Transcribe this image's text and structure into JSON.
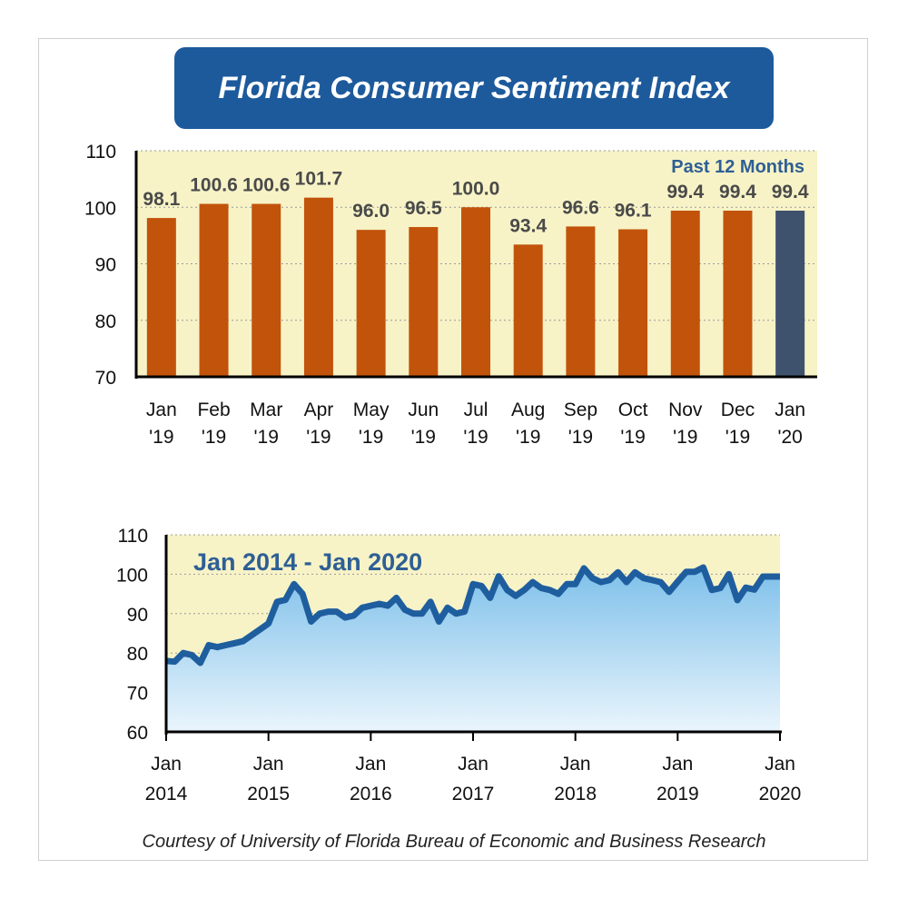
{
  "title": "Florida Consumer Sentiment Index",
  "caption": "Courtesy of University of Florida Bureau of Economic and Business Research",
  "colors": {
    "title_bg": "#1d5a9c",
    "plot_bg": "#f7f3c7",
    "bar": "#c2530b",
    "bar_highlight": "#3f526d",
    "annotation": "#2e5f95",
    "line": "#1f5e9e",
    "area_top": "#7ec0ea",
    "area_bottom": "#eaf5fc"
  },
  "chart_data": [
    {
      "type": "bar",
      "title": "",
      "annotation": "Past 12 Months",
      "categories": [
        "Jan '19",
        "Feb '19",
        "Mar '19",
        "Apr '19",
        "May '19",
        "Jun '19",
        "Jul '19",
        "Aug '19",
        "Sep '19",
        "Oct '19",
        "Nov '19",
        "Dec '19",
        "Jan '20"
      ],
      "category_lines": [
        [
          "Jan",
          "'19"
        ],
        [
          "Feb",
          "'19"
        ],
        [
          "Mar",
          "'19"
        ],
        [
          "Apr",
          "'19"
        ],
        [
          "May",
          "'19"
        ],
        [
          "Jun",
          "'19"
        ],
        [
          "Jul",
          "'19"
        ],
        [
          "Aug",
          "'19"
        ],
        [
          "Sep",
          "'19"
        ],
        [
          "Oct",
          "'19"
        ],
        [
          "Nov",
          "'19"
        ],
        [
          "Dec",
          "'19"
        ],
        [
          "Jan",
          "'20"
        ]
      ],
      "values": [
        98.1,
        100.6,
        100.6,
        101.7,
        96.0,
        96.5,
        100.0,
        93.4,
        96.6,
        96.1,
        99.4,
        99.4,
        99.4
      ],
      "value_labels": [
        "98.1",
        "100.6",
        "100.6",
        "101.7",
        "96.0",
        "96.5",
        "100.0",
        "93.4",
        "96.6",
        "96.1",
        "99.4",
        "99.4",
        "99.4"
      ],
      "highlight_index": 12,
      "ylim": [
        70,
        110
      ],
      "yticks": [
        70,
        80,
        90,
        100,
        110
      ],
      "grid": true
    },
    {
      "type": "area",
      "title": "",
      "annotation": "Jan 2014 - Jan 2020",
      "x_range": [
        "2014-01",
        "2020-01"
      ],
      "xticks": [
        [
          "Jan",
          "2014"
        ],
        [
          "Jan",
          "2015"
        ],
        [
          "Jan",
          "2016"
        ],
        [
          "Jan",
          "2017"
        ],
        [
          "Jan",
          "2018"
        ],
        [
          "Jan",
          "2019"
        ],
        [
          "Jan",
          "2020"
        ]
      ],
      "values": [
        78.0,
        77.8,
        80.0,
        79.5,
        77.5,
        82.0,
        81.5,
        82.0,
        82.5,
        83.0,
        84.5,
        86.0,
        87.5,
        93.0,
        93.5,
        97.5,
        95.0,
        88.0,
        90.0,
        90.5,
        90.5,
        89.0,
        89.5,
        91.5,
        92.0,
        92.5,
        92.0,
        94.0,
        91.0,
        90.0,
        90.0,
        93.0,
        88.0,
        91.5,
        90.0,
        90.5,
        97.5,
        97.0,
        94.0,
        99.5,
        96.0,
        94.5,
        96.0,
        98.0,
        96.5,
        96.0,
        95.0,
        97.5,
        97.5,
        101.5,
        99.0,
        98.0,
        98.5,
        100.5,
        98.0,
        100.5,
        99.0,
        98.5,
        98.0,
        95.5,
        98.1,
        100.6,
        100.6,
        101.7,
        96.0,
        96.5,
        100.0,
        93.4,
        96.6,
        96.1,
        99.4,
        99.4,
        99.4
      ],
      "ylim": [
        60,
        110
      ],
      "yticks": [
        60,
        70,
        80,
        90,
        100,
        110
      ],
      "grid": true
    }
  ]
}
